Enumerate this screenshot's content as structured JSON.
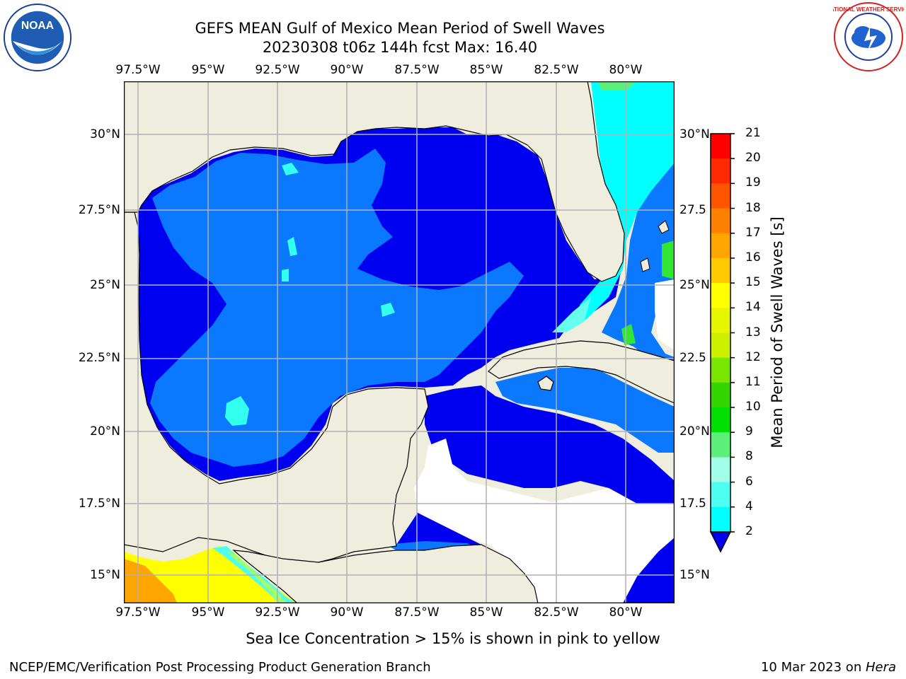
{
  "title": {
    "line1": "GEFS MEAN Gulf of Mexico Mean Period of Swell Waves",
    "line2": "20230308 t06z 144h fcst   Max: 16.40"
  },
  "axes": {
    "lon_labels": [
      "97.5°W",
      "95°W",
      "92.5°W",
      "90°W",
      "87.5°W",
      "85°W",
      "82.5°W",
      "80°W"
    ],
    "lat_labels_left": [
      "30°N",
      "27.5°N",
      "25°N",
      "22.5°N",
      "20°N",
      "17.5°N",
      "15°N"
    ],
    "lat_labels_right": [
      "30°N",
      "27.5",
      "25°N",
      "22.5",
      "20°N",
      "17.5",
      "15°N"
    ],
    "grid": true
  },
  "colorbar": {
    "label": "Mean Period of Swell Waves [s]",
    "ticks": [
      "21",
      "20",
      "19",
      "18",
      "17",
      "16",
      "15",
      "14",
      "13",
      "12",
      "11",
      "10",
      "9",
      "8",
      "6",
      "4",
      "2"
    ],
    "colors": [
      "#ff0000",
      "#ff2a00",
      "#ff5500",
      "#ff7f00",
      "#ffa500",
      "#ffc800",
      "#ffff00",
      "#e6f500",
      "#ccf000",
      "#7ae600",
      "#33d400",
      "#00e000",
      "#5cf07a",
      "#a0ffe6",
      "#4dfff0",
      "#00ffff",
      "#00e6ff",
      "#0a78ff"
    ],
    "extend_color": "#0000f0"
  },
  "colors": {
    "land": "#efedde",
    "deep_blue": "#0000f0",
    "mid_blue": "#0a78ff",
    "cyan": "#00ffff",
    "light_cyan": "#33ffee"
  },
  "footer": {
    "note": "Sea Ice Concentration > 15% is shown in pink to yellow",
    "credit": "NCEP/EMC/Verification Post Processing Product Generation Branch",
    "date": "10 Mar 2023 on ",
    "host": "Hera"
  },
  "logos": {
    "noaa_text": "NOAA",
    "nws_text": "NATIONAL WEATHER SERVICE"
  }
}
